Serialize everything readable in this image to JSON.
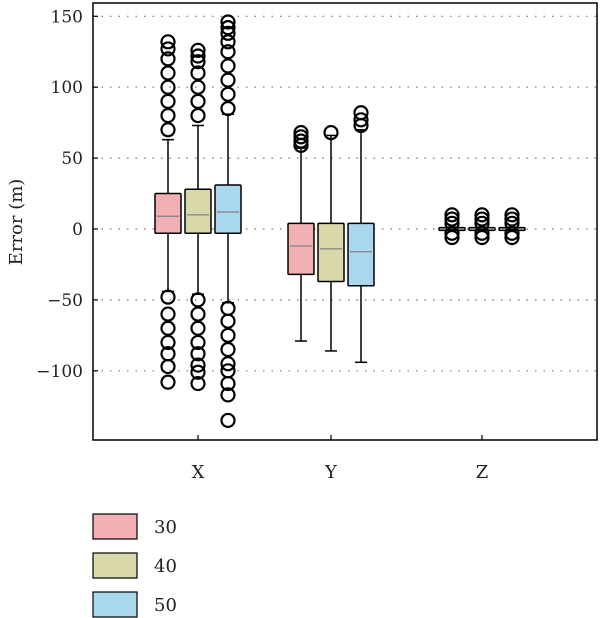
{
  "chart_data": {
    "type": "box",
    "title": "",
    "xlabel": "",
    "ylabel": "Error (m)",
    "ylim": [
      -150,
      152
    ],
    "yticks": [
      150,
      100,
      50,
      0,
      -50,
      -100
    ],
    "ytick_labels": [
      "150",
      "100",
      "50",
      "0",
      "−50",
      "−100"
    ],
    "grid": "dotted horizontal at ticks",
    "legend_position": "below plot, left",
    "categories": [
      "X",
      "Y",
      "Z"
    ],
    "series": [
      {
        "name": "30",
        "color": "#f1b0b4",
        "boxes": [
          {
            "category": "X",
            "whisker_low": -44,
            "q1": -3,
            "median": 9,
            "q3": 25,
            "whisker_high": 63,
            "outliers_high": [
              70,
              80,
              90,
              100,
              110,
              120,
              127,
              132
            ],
            "outliers_low": [
              -48,
              -60,
              -70,
              -80,
              -88,
              -97,
              -108
            ]
          },
          {
            "category": "Y",
            "whisker_low": -79,
            "q1": -32,
            "median": -12,
            "q3": 4,
            "whisker_high": 57,
            "outliers_high": [
              59,
              62,
              65,
              68
            ],
            "outliers_low": []
          },
          {
            "category": "Z",
            "whisker_low": -1,
            "q1": -1,
            "median": 0,
            "q3": 1,
            "whisker_high": 1,
            "outliers_high": [
              4,
              7,
              10
            ],
            "outliers_low": [
              -3,
              -6
            ]
          }
        ]
      },
      {
        "name": "40",
        "color": "#d9d8a8",
        "boxes": [
          {
            "category": "X",
            "whisker_low": -46,
            "q1": -3,
            "median": 10,
            "q3": 28,
            "whisker_high": 73,
            "outliers_high": [
              80,
              90,
              100,
              110,
              118,
              122,
              126
            ],
            "outliers_low": [
              -50,
              -60,
              -70,
              -80,
              -88,
              -96,
              -101,
              -109
            ]
          },
          {
            "category": "Y",
            "whisker_low": -86,
            "q1": -37,
            "median": -14,
            "q3": 4,
            "whisker_high": 66,
            "outliers_high": [
              68
            ],
            "outliers_low": []
          },
          {
            "category": "Z",
            "whisker_low": -1,
            "q1": -1,
            "median": 0,
            "q3": 1,
            "whisker_high": 1,
            "outliers_high": [
              4,
              7,
              10
            ],
            "outliers_low": [
              -3,
              -6
            ]
          }
        ]
      },
      {
        "name": "50",
        "color": "#a9d7ee",
        "boxes": [
          {
            "category": "X",
            "whisker_low": -52,
            "q1": -3,
            "median": 12,
            "q3": 31,
            "whisker_high": 81,
            "outliers_high": [
              85,
              95,
              105,
              115,
              125,
              132,
              138,
              142,
              146
            ],
            "outliers_low": [
              -56,
              -65,
              -75,
              -85,
              -95,
              -100,
              -109,
              -117,
              -135
            ]
          },
          {
            "category": "Y",
            "whisker_low": -94,
            "q1": -40,
            "median": -16,
            "q3": 4,
            "whisker_high": 70,
            "outliers_high": [
              73,
              77,
              82
            ],
            "outliers_low": []
          },
          {
            "category": "Z",
            "whisker_low": -1,
            "q1": -1,
            "median": 0,
            "q3": 1,
            "whisker_high": 1,
            "outliers_high": [
              4,
              7,
              10
            ],
            "outliers_low": [
              -3,
              -6
            ]
          }
        ]
      }
    ]
  }
}
